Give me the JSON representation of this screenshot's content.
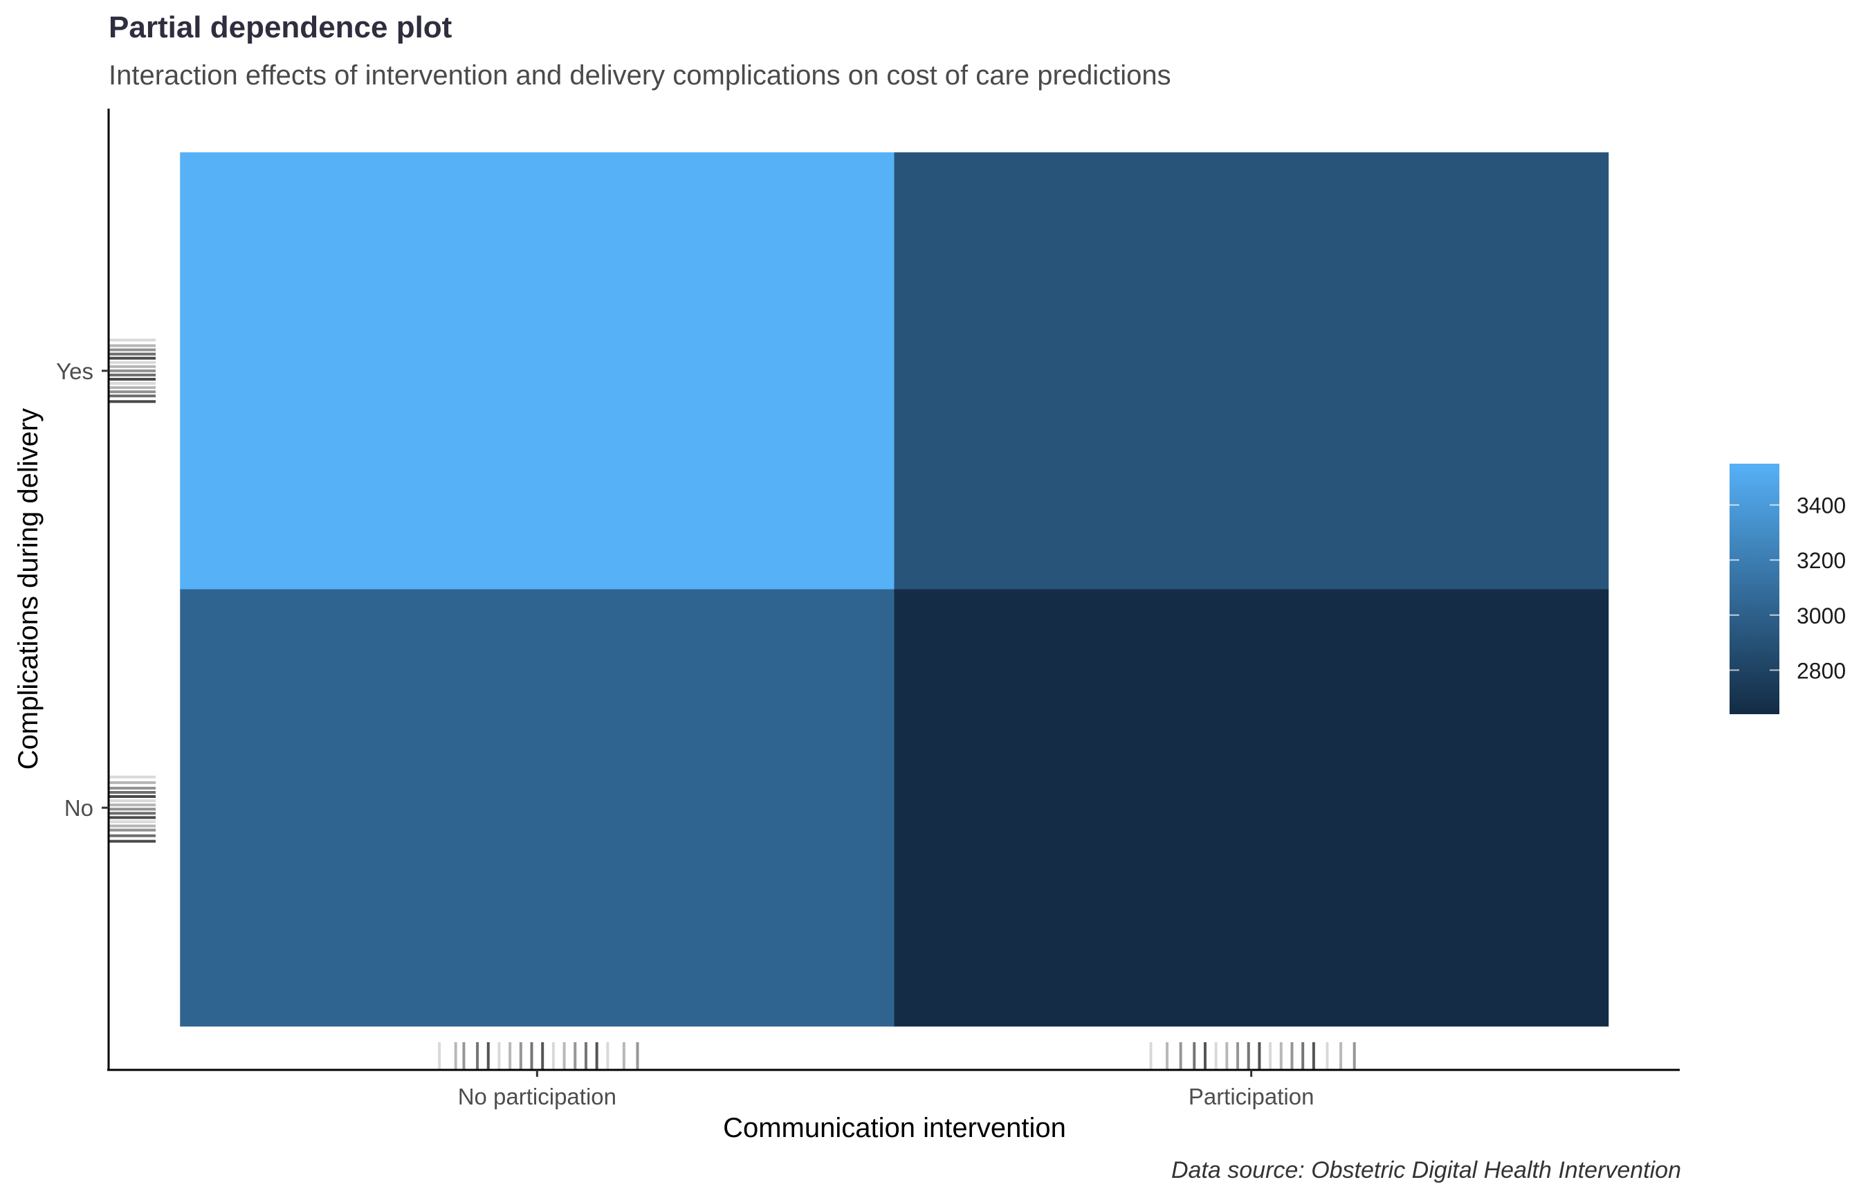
{
  "chart_data": {
    "type": "heatmap",
    "title": "Partial dependence plot",
    "subtitle": "Interaction effects of intervention and delivery complications on cost of care predictions",
    "xlabel": "Communication intervention",
    "ylabel": "Complications during delivery",
    "caption": "Data source: Obstetric Digital Health Intervention",
    "x_categories": [
      "No participation",
      "Participation"
    ],
    "y_categories": [
      "No",
      "Yes"
    ],
    "cells": [
      {
        "x": "No participation",
        "y": "Yes",
        "value": 3550
      },
      {
        "x": "Participation",
        "y": "Yes",
        "value": 2920
      },
      {
        "x": "No participation",
        "y": "No",
        "value": 3030
      },
      {
        "x": "Participation",
        "y": "No",
        "value": 2650
      }
    ],
    "colorbar": {
      "min": 2640,
      "max": 3550,
      "ticks": [
        2800,
        3000,
        3200,
        3400
      ],
      "tick_labels": [
        "2800",
        "3000",
        "3200",
        "3400"
      ],
      "low_color": "#132b43",
      "high_color": "#56b1f7"
    },
    "rug": {
      "x": {
        "No participation": [
          -0.36,
          -0.3,
          -0.27,
          -0.22,
          -0.18,
          -0.14,
          -0.1,
          -0.06,
          -0.02,
          0.02,
          0.06,
          0.1,
          0.14,
          0.18,
          0.22,
          0.26,
          0.32,
          0.37
        ],
        "Participation": [
          -0.37,
          -0.31,
          -0.26,
          -0.21,
          -0.17,
          -0.13,
          -0.09,
          -0.05,
          -0.01,
          0.03,
          0.07,
          0.11,
          0.15,
          0.19,
          0.23,
          0.28,
          0.33,
          0.38
        ]
      },
      "y": {
        "No": [
          -0.22,
          -0.18,
          -0.14,
          -0.11,
          -0.08,
          -0.05,
          -0.02,
          0.01,
          0.04,
          0.07,
          0.1,
          0.13,
          0.16,
          0.2,
          0.24
        ],
        "Yes": [
          -0.22,
          -0.18,
          -0.15,
          -0.12,
          -0.09,
          -0.06,
          -0.03,
          0.0,
          0.03,
          0.06,
          0.09,
          0.12,
          0.15,
          0.18,
          0.22
        ]
      }
    },
    "legend": "right",
    "grid": false
  }
}
